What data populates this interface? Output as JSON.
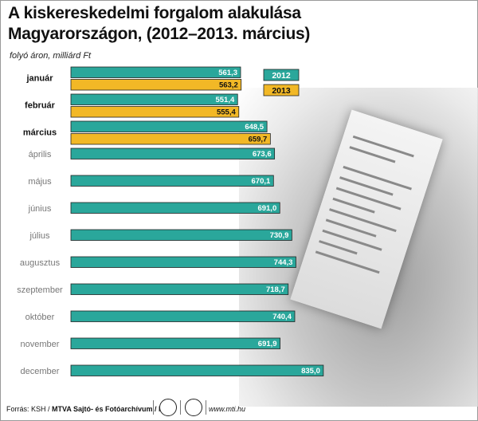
{
  "title_line1": "A kiskereskedelmi forgalom alakulása",
  "title_line2": "Magyarországon, (2012–2013. március)",
  "subtitle": "folyó áron, milliárd Ft",
  "footer": {
    "source": "Forrás: KSH / ",
    "credit": "MTVA Sajtó- és Fotóarchívum / MTI",
    "url": "www.mti.hu"
  },
  "colors": {
    "s2012": "#2aa79b",
    "s2013": "#f2b826",
    "month_current": "#111111",
    "month_past": "#777777"
  },
  "chart_data": {
    "type": "bar",
    "orientation": "horizontal",
    "categories": [
      "január",
      "február",
      "március",
      "április",
      "május",
      "június",
      "július",
      "augusztus",
      "szeptember",
      "október",
      "november",
      "december"
    ],
    "series": [
      {
        "name": "2012",
        "values": [
          561.3,
          551.4,
          648.5,
          673.6,
          670.1,
          691.0,
          730.9,
          744.3,
          718.7,
          740.4,
          691.9,
          835.0
        ],
        "labels": [
          "561,3",
          "551,4",
          "648,5",
          "673,6",
          "670,1",
          "691,0",
          "730,9",
          "744,3",
          "718,7",
          "740,4",
          "691,9",
          "835,0"
        ]
      },
      {
        "name": "2013",
        "values": [
          563.2,
          555.4,
          659.7,
          null,
          null,
          null,
          null,
          null,
          null,
          null,
          null,
          null
        ],
        "labels": [
          "563,2",
          "555,4",
          "659,7"
        ]
      }
    ],
    "legend_position": "top-right",
    "grid": false
  }
}
